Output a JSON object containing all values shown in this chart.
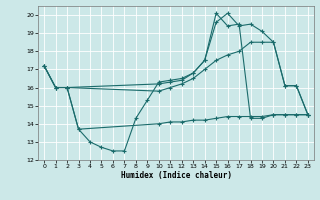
{
  "xlabel": "Humidex (Indice chaleur)",
  "background_color": "#cce8e8",
  "grid_color": "#ffffff",
  "line_color": "#1a6b6b",
  "xlim": [
    -0.5,
    23.5
  ],
  "ylim": [
    12,
    20.5
  ],
  "yticks": [
    12,
    13,
    14,
    15,
    16,
    17,
    18,
    19,
    20
  ],
  "xticks": [
    0,
    1,
    2,
    3,
    4,
    5,
    6,
    7,
    8,
    9,
    10,
    11,
    12,
    13,
    14,
    15,
    16,
    17,
    18,
    19,
    20,
    21,
    22,
    23
  ],
  "series1_x": [
    0,
    1,
    2,
    3,
    4,
    5,
    6,
    7,
    8,
    9,
    10,
    11,
    12,
    13,
    14,
    15,
    16,
    17,
    18,
    19,
    20,
    21,
    22,
    23
  ],
  "series1_y": [
    17.2,
    16.0,
    16.0,
    13.7,
    13.0,
    12.7,
    12.5,
    12.5,
    14.3,
    15.3,
    16.3,
    16.4,
    16.5,
    16.8,
    17.5,
    20.1,
    19.4,
    19.5,
    14.3,
    14.3,
    14.5,
    14.5,
    14.5,
    14.5
  ],
  "series2_x": [
    0,
    1,
    2,
    10,
    11,
    12,
    13,
    14,
    15,
    16,
    17,
    18,
    19,
    20,
    21,
    22,
    23
  ],
  "series2_y": [
    17.2,
    16.0,
    16.0,
    16.2,
    16.3,
    16.4,
    16.8,
    17.5,
    19.6,
    20.1,
    19.4,
    19.5,
    19.1,
    18.5,
    16.1,
    16.1,
    14.5
  ],
  "series3_x": [
    0,
    1,
    2,
    10,
    11,
    12,
    13,
    14,
    15,
    16,
    17,
    18,
    19,
    20,
    21,
    22,
    23
  ],
  "series3_y": [
    17.2,
    16.0,
    16.0,
    15.8,
    16.0,
    16.2,
    16.5,
    17.0,
    17.5,
    17.8,
    18.0,
    18.5,
    18.5,
    18.5,
    16.1,
    16.1,
    14.5
  ],
  "series4_x": [
    2,
    3,
    10,
    11,
    12,
    13,
    14,
    15,
    16,
    17,
    18,
    19,
    20,
    21,
    22,
    23
  ],
  "series4_y": [
    16.0,
    13.7,
    14.0,
    14.1,
    14.1,
    14.2,
    14.2,
    14.3,
    14.4,
    14.4,
    14.4,
    14.4,
    14.5,
    14.5,
    14.5,
    14.5
  ]
}
